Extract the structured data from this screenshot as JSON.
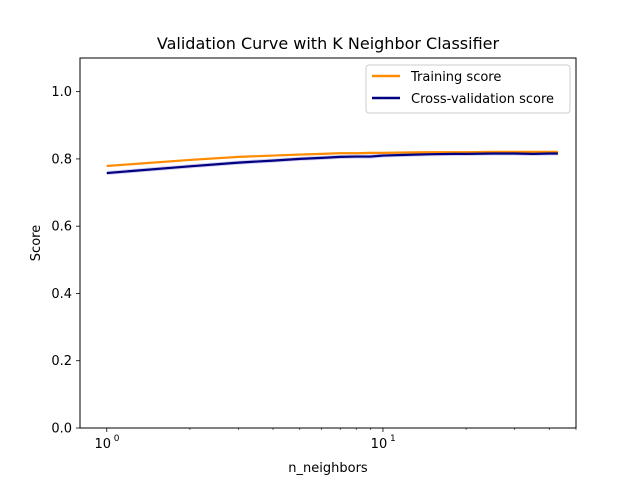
{
  "chart_data": {
    "type": "line",
    "title": "Validation Curve with K Neighbor Classifier",
    "xlabel": "n_neighbors",
    "ylabel": "Score",
    "xscale": "log",
    "xlim": [
      0.8,
      50
    ],
    "ylim": [
      0.0,
      1.1
    ],
    "x_ticks": [
      {
        "value": 1,
        "base": "10",
        "exp": "0"
      },
      {
        "value": 10,
        "base": "10",
        "exp": "1"
      }
    ],
    "y_ticks": [
      "0.0",
      "0.2",
      "0.4",
      "0.6",
      "0.8",
      "1.0"
    ],
    "grid": false,
    "legend": {
      "position": "top-right"
    },
    "x": [
      1,
      2,
      3,
      4,
      5,
      6,
      7,
      8,
      9,
      10,
      12,
      15,
      18,
      20,
      25,
      30,
      35,
      40,
      43
    ],
    "series": [
      {
        "name": "Training score",
        "color": "#ff8c00",
        "values": [
          0.779,
          0.797,
          0.806,
          0.81,
          0.813,
          0.815,
          0.817,
          0.817,
          0.818,
          0.818,
          0.819,
          0.82,
          0.82,
          0.82,
          0.821,
          0.821,
          0.821,
          0.821,
          0.821
        ],
        "band_half_width": 0.003,
        "band_color": "#ff8c00"
      },
      {
        "name": "Cross-validation score",
        "color": "#000080",
        "values": [
          0.758,
          0.778,
          0.789,
          0.795,
          0.8,
          0.803,
          0.806,
          0.807,
          0.807,
          0.81,
          0.812,
          0.814,
          0.815,
          0.815,
          0.816,
          0.816,
          0.815,
          0.816,
          0.816
        ],
        "band_half_width": 0.006,
        "band_color": "#6a5acd"
      }
    ]
  }
}
